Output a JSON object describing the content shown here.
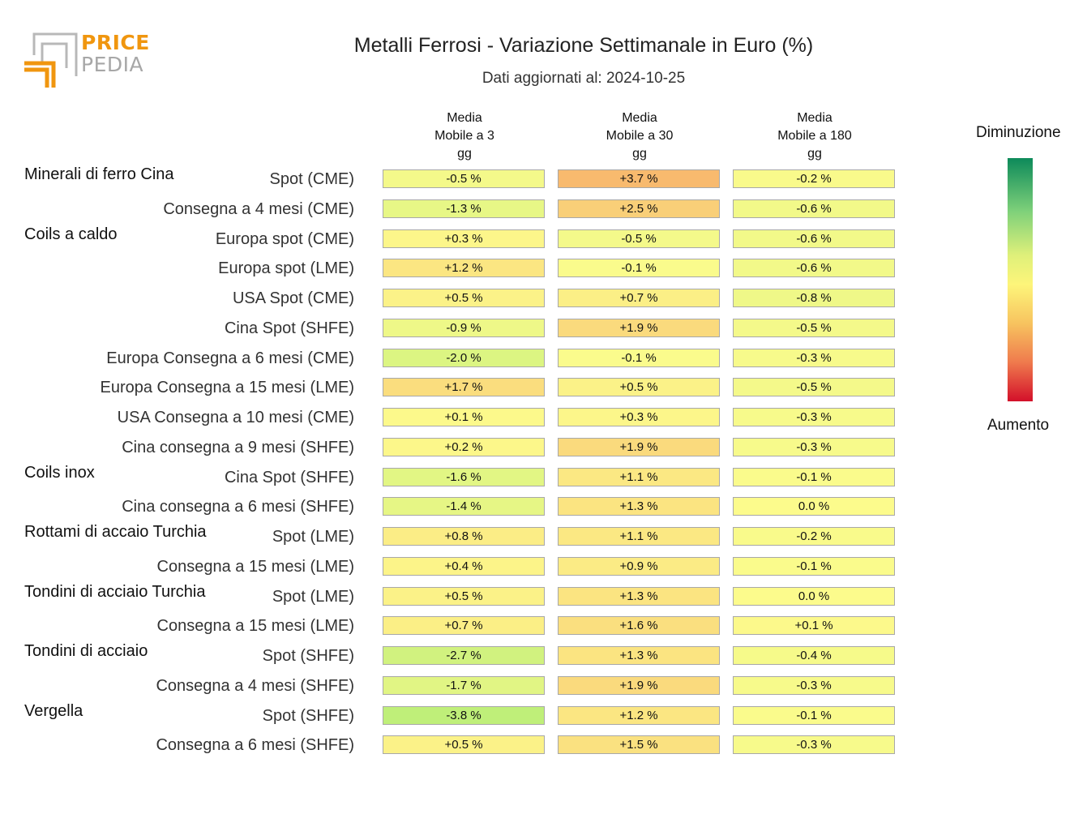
{
  "logo": {
    "line1": "PRICE",
    "line2": "PEDIA"
  },
  "title": "Metalli Ferrosi - Variazione Settimanale in Euro (%)",
  "subtitle": "Dati aggiornati al: 2024-10-25",
  "legend": {
    "top_label": "Diminuzione",
    "bottom_label": "Aumento"
  },
  "chart_data": {
    "type": "heatmap",
    "columns": [
      {
        "line1": "Media",
        "line2": "Mobile a 3",
        "line3": "gg"
      },
      {
        "line1": "Media",
        "line2": "Mobile a 30",
        "line3": "gg"
      },
      {
        "line1": "Media",
        "line2": "Mobile a 180",
        "line3": "gg"
      }
    ],
    "rows": [
      {
        "group": "Minerali di ferro Cina",
        "label": "Spot (CME)",
        "values": [
          -0.5,
          3.7,
          -0.2
        ],
        "display": [
          "-0.5 %",
          "+3.7 %",
          "-0.2 %"
        ]
      },
      {
        "group": "",
        "label": "Consegna a 4 mesi (CME)",
        "values": [
          -1.3,
          2.5,
          -0.6
        ],
        "display": [
          "-1.3 %",
          "+2.5 %",
          "-0.6 %"
        ]
      },
      {
        "group": "Coils a caldo",
        "label": "Europa spot (CME)",
        "values": [
          0.3,
          -0.5,
          -0.6
        ],
        "display": [
          "+0.3 %",
          "-0.5 %",
          "-0.6 %"
        ]
      },
      {
        "group": "",
        "label": "Europa spot (LME)",
        "values": [
          1.2,
          -0.1,
          -0.6
        ],
        "display": [
          "+1.2 %",
          "-0.1 %",
          "-0.6 %"
        ]
      },
      {
        "group": "",
        "label": "USA Spot (CME)",
        "values": [
          0.5,
          0.7,
          -0.8
        ],
        "display": [
          "+0.5 %",
          "+0.7 %",
          "-0.8 %"
        ]
      },
      {
        "group": "",
        "label": "Cina Spot (SHFE)",
        "values": [
          -0.9,
          1.9,
          -0.5
        ],
        "display": [
          "-0.9 %",
          "+1.9 %",
          "-0.5 %"
        ]
      },
      {
        "group": "",
        "label": "Europa Consegna a 6 mesi (CME)",
        "values": [
          -2.0,
          -0.1,
          -0.3
        ],
        "display": [
          "-2.0 %",
          "-0.1 %",
          "-0.3 %"
        ]
      },
      {
        "group": "",
        "label": "Europa Consegna a 15 mesi (LME)",
        "values": [
          1.7,
          0.5,
          -0.5
        ],
        "display": [
          "+1.7 %",
          "+0.5 %",
          "-0.5 %"
        ]
      },
      {
        "group": "",
        "label": "USA Consegna a 10 mesi (CME)",
        "values": [
          0.1,
          0.3,
          -0.3
        ],
        "display": [
          "+0.1 %",
          "+0.3 %",
          "-0.3 %"
        ]
      },
      {
        "group": "",
        "label": "Cina consegna a 9 mesi (SHFE)",
        "values": [
          0.2,
          1.9,
          -0.3
        ],
        "display": [
          "+0.2 %",
          "+1.9 %",
          "-0.3 %"
        ]
      },
      {
        "group": "Coils inox",
        "label": "Cina Spot (SHFE)",
        "values": [
          -1.6,
          1.1,
          -0.1
        ],
        "display": [
          "-1.6 %",
          "+1.1 %",
          "-0.1 %"
        ]
      },
      {
        "group": "",
        "label": "Cina consegna a 6 mesi (SHFE)",
        "values": [
          -1.4,
          1.3,
          0.0
        ],
        "display": [
          "-1.4 %",
          "+1.3 %",
          "0.0 %"
        ]
      },
      {
        "group": "Rottami di accaio Turchia",
        "label": "Spot (LME)",
        "values": [
          0.8,
          1.1,
          -0.2
        ],
        "display": [
          "+0.8 %",
          "+1.1 %",
          "-0.2 %"
        ]
      },
      {
        "group": "",
        "label": "Consegna a 15 mesi (LME)",
        "values": [
          0.4,
          0.9,
          -0.1
        ],
        "display": [
          "+0.4 %",
          "+0.9 %",
          "-0.1 %"
        ]
      },
      {
        "group": "Tondini di acciaio Turchia",
        "label": "Spot (LME)",
        "values": [
          0.5,
          1.3,
          0.0
        ],
        "display": [
          "+0.5 %",
          "+1.3 %",
          "0.0 %"
        ]
      },
      {
        "group": "",
        "label": "Consegna a 15 mesi (LME)",
        "values": [
          0.7,
          1.6,
          0.1
        ],
        "display": [
          "+0.7 %",
          "+1.6 %",
          "+0.1 %"
        ]
      },
      {
        "group": "Tondini di acciaio",
        "label": "Spot (SHFE)",
        "values": [
          -2.7,
          1.3,
          -0.4
        ],
        "display": [
          "-2.7 %",
          "+1.3 %",
          "-0.4 %"
        ]
      },
      {
        "group": "",
        "label": "Consegna a 4 mesi (SHFE)",
        "values": [
          -1.7,
          1.9,
          -0.3
        ],
        "display": [
          "-1.7 %",
          "+1.9 %",
          "-0.3 %"
        ]
      },
      {
        "group": "Vergella",
        "label": "Spot (SHFE)",
        "values": [
          -3.8,
          1.2,
          -0.1
        ],
        "display": [
          "-3.8 %",
          "+1.2 %",
          "-0.1 %"
        ]
      },
      {
        "group": "",
        "label": "Consegna a 6 mesi (SHFE)",
        "values": [
          0.5,
          1.5,
          -0.3
        ],
        "display": [
          "+0.5 %",
          "+1.5 %",
          "-0.3 %"
        ]
      }
    ]
  }
}
